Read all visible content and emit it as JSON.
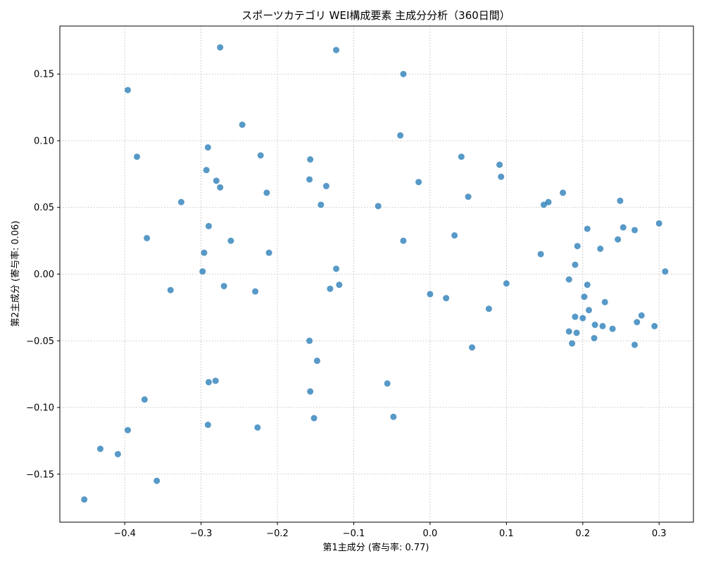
{
  "chart_data": {
    "type": "scatter",
    "title": "スポーツカテゴリ WEI構成要素 主成分分析（360日間）",
    "xlabel": "第1主成分 (寄与率: 0.77)",
    "ylabel": "第2主成分 (寄与率: 0.06)",
    "xlim": [
      -0.485,
      0.345
    ],
    "ylim": [
      -0.186,
      0.186
    ],
    "xticks": [
      -0.4,
      -0.3,
      -0.2,
      -0.1,
      0.0,
      0.1,
      0.2,
      0.3
    ],
    "xtick_labels": [
      "−0.4",
      "−0.3",
      "−0.2",
      "−0.1",
      "0.0",
      "0.1",
      "0.2",
      "0.3"
    ],
    "yticks": [
      -0.15,
      -0.1,
      -0.05,
      0.0,
      0.05,
      0.1,
      0.15
    ],
    "ytick_labels": [
      "−0.15",
      "−0.10",
      "−0.05",
      "0.00",
      "0.05",
      "0.10",
      "0.15"
    ],
    "grid": true,
    "color": "#1f77b4",
    "points": [
      [
        -0.275,
        0.17
      ],
      [
        -0.123,
        0.168
      ],
      [
        -0.035,
        0.15
      ],
      [
        -0.396,
        0.138
      ],
      [
        -0.246,
        0.112
      ],
      [
        -0.039,
        0.104
      ],
      [
        -0.291,
        0.095
      ],
      [
        -0.384,
        0.088
      ],
      [
        -0.222,
        0.089
      ],
      [
        -0.157,
        0.086
      ],
      [
        0.041,
        0.088
      ],
      [
        0.091,
        0.082
      ],
      [
        -0.293,
        0.078
      ],
      [
        0.093,
        0.073
      ],
      [
        -0.28,
        0.07
      ],
      [
        -0.158,
        0.071
      ],
      [
        -0.275,
        0.065
      ],
      [
        -0.136,
        0.066
      ],
      [
        -0.015,
        0.069
      ],
      [
        -0.214,
        0.061
      ],
      [
        0.174,
        0.061
      ],
      [
        -0.326,
        0.054
      ],
      [
        -0.143,
        0.052
      ],
      [
        -0.068,
        0.051
      ],
      [
        0.05,
        0.058
      ],
      [
        0.149,
        0.052
      ],
      [
        0.155,
        0.054
      ],
      [
        0.249,
        0.055
      ],
      [
        -0.29,
        0.036
      ],
      [
        0.206,
        0.034
      ],
      [
        0.253,
        0.035
      ],
      [
        0.268,
        0.033
      ],
      [
        0.3,
        0.038
      ],
      [
        -0.371,
        0.027
      ],
      [
        -0.261,
        0.025
      ],
      [
        0.032,
        0.029
      ],
      [
        -0.035,
        0.025
      ],
      [
        0.246,
        0.026
      ],
      [
        0.193,
        0.021
      ],
      [
        0.223,
        0.019
      ],
      [
        -0.296,
        0.016
      ],
      [
        -0.211,
        0.016
      ],
      [
        0.145,
        0.015
      ],
      [
        0.19,
        0.007
      ],
      [
        -0.298,
        0.002
      ],
      [
        -0.123,
        0.004
      ],
      [
        0.308,
        0.002
      ],
      [
        -0.34,
        -0.012
      ],
      [
        -0.27,
        -0.009
      ],
      [
        -0.229,
        -0.013
      ],
      [
        -0.131,
        -0.011
      ],
      [
        -0.119,
        -0.008
      ],
      [
        0.0,
        -0.015
      ],
      [
        0.1,
        -0.007
      ],
      [
        0.182,
        -0.004
      ],
      [
        0.206,
        -0.008
      ],
      [
        0.021,
        -0.018
      ],
      [
        0.202,
        -0.017
      ],
      [
        0.229,
        -0.021
      ],
      [
        0.077,
        -0.026
      ],
      [
        0.208,
        -0.027
      ],
      [
        0.19,
        -0.032
      ],
      [
        0.2,
        -0.033
      ],
      [
        0.277,
        -0.031
      ],
      [
        0.226,
        -0.039
      ],
      [
        0.216,
        -0.038
      ],
      [
        0.271,
        -0.036
      ],
      [
        0.239,
        -0.041
      ],
      [
        0.294,
        -0.039
      ],
      [
        0.182,
        -0.043
      ],
      [
        0.192,
        -0.044
      ],
      [
        0.215,
        -0.048
      ],
      [
        0.186,
        -0.052
      ],
      [
        0.268,
        -0.053
      ],
      [
        -0.158,
        -0.05
      ],
      [
        0.055,
        -0.055
      ],
      [
        -0.148,
        -0.065
      ],
      [
        -0.29,
        -0.081
      ],
      [
        -0.281,
        -0.08
      ],
      [
        -0.056,
        -0.082
      ],
      [
        -0.157,
        -0.088
      ],
      [
        -0.374,
        -0.094
      ],
      [
        -0.291,
        -0.113
      ],
      [
        -0.226,
        -0.115
      ],
      [
        -0.152,
        -0.108
      ],
      [
        -0.048,
        -0.107
      ],
      [
        -0.396,
        -0.117
      ],
      [
        -0.432,
        -0.131
      ],
      [
        -0.409,
        -0.135
      ],
      [
        -0.358,
        -0.155
      ],
      [
        -0.453,
        -0.169
      ]
    ]
  }
}
